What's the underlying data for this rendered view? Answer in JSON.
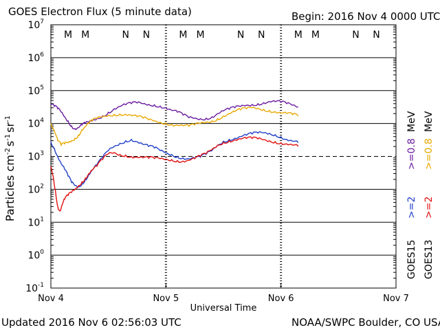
{
  "header": {
    "title": "GOES Electron Flux (5 minute data)",
    "begin": "Begin: 2016 Nov 4 0000 UTC"
  },
  "footer": {
    "updated": "Updated 2016 Nov  6 02:56:03 UTC",
    "credit": "NOAA/SWPC Boulder, CO USA"
  },
  "legend": {
    "goes15": "GOES15",
    "goes13": "GOES13",
    "g15_2": ">=2",
    "g13_2": ">=2",
    "g15_08": ">=0.8",
    "g13_08": ">=0.8",
    "unit": "MeV"
  },
  "colors": {
    "goes15_2": "#1f3fc8",
    "goes13_2": "#e01010",
    "goes15_08": "#6a1aa0",
    "goes13_08": "#e8a800",
    "marker_M": "#cc2222",
    "marker_N": "#2244cc"
  },
  "chart_data": {
    "type": "line",
    "title": "GOES Electron Flux (5 minute data)",
    "xlabel": "Universal Time",
    "ylabel": "Particles cm-2 s-1 sr-1",
    "ylabel_parts": {
      "base": "Particles cm",
      "e1": "-2",
      "mid1": "s",
      "e2": "-1",
      "mid2": "sr",
      "e3": "-1"
    },
    "yscale": "log",
    "ylim": [
      0.1,
      10000000
    ],
    "y_ticks": [
      {
        "base": "10",
        "exp": "7"
      },
      {
        "base": "10",
        "exp": "6"
      },
      {
        "base": "10",
        "exp": "5"
      },
      {
        "base": "10",
        "exp": "4"
      },
      {
        "base": "10",
        "exp": "3"
      },
      {
        "base": "10",
        "exp": "2"
      },
      {
        "base": "10",
        "exp": "1"
      },
      {
        "base": "10",
        "exp": "0"
      },
      {
        "base": "10",
        "exp": "-1"
      }
    ],
    "xlim_days": [
      0,
      3
    ],
    "x_ticks": [
      "Nov 4",
      "Nov 5",
      "Nov 6",
      "Nov 7"
    ],
    "threshold_line": 1000,
    "local_markers": [
      {
        "label": "M",
        "day": 0.15
      },
      {
        "label": "M",
        "day": 0.3
      },
      {
        "label": "N",
        "day": 0.65
      },
      {
        "label": "N",
        "day": 0.83
      },
      {
        "label": "M",
        "day": 1.15
      },
      {
        "label": "M",
        "day": 1.3
      },
      {
        "label": "N",
        "day": 1.65
      },
      {
        "label": "N",
        "day": 1.83
      },
      {
        "label": "M",
        "day": 2.15
      },
      {
        "label": "M",
        "day": 2.3
      },
      {
        "label": "N",
        "day": 2.65
      },
      {
        "label": "N",
        "day": 2.83
      }
    ],
    "series": [
      {
        "name": "GOES15 >=0.8 MeV",
        "x": [
          0.0,
          0.03,
          0.06,
          0.09,
          0.12,
          0.15,
          0.18,
          0.21,
          0.24,
          0.27,
          0.3,
          0.33,
          0.36,
          0.4,
          0.45,
          0.5,
          0.55,
          0.6,
          0.65,
          0.7,
          0.75,
          0.8,
          0.85,
          0.9,
          0.95,
          1.0,
          1.05,
          1.1,
          1.15,
          1.2,
          1.25,
          1.3,
          1.35,
          1.4,
          1.45,
          1.5,
          1.55,
          1.6,
          1.65,
          1.7,
          1.75,
          1.8,
          1.85,
          1.9,
          1.95,
          2.0,
          2.05,
          2.1,
          2.15
        ],
        "values": [
          38000,
          33000,
          28000,
          22000,
          16000,
          12000,
          8500,
          7000,
          7500,
          9000,
          10000,
          10500,
          12000,
          14000,
          17000,
          22000,
          28000,
          33000,
          37000,
          40000,
          42000,
          40000,
          38000,
          37000,
          34000,
          30000,
          25000,
          22000,
          18000,
          15000,
          14500,
          14000,
          14500,
          16000,
          20000,
          24000,
          27000,
          30000,
          33000,
          36000,
          38000,
          40000,
          43000,
          46000,
          46000,
          44000,
          40000,
          36000,
          32000
        ]
      },
      {
        "name": "GOES13 >=0.8 MeV",
        "x": [
          0.0,
          0.03,
          0.06,
          0.09,
          0.12,
          0.15,
          0.18,
          0.21,
          0.24,
          0.27,
          0.3,
          0.33,
          0.36,
          0.4,
          0.45,
          0.5,
          0.55,
          0.6,
          0.65,
          0.7,
          0.75,
          0.8,
          0.85,
          0.9,
          0.95,
          1.0,
          1.05,
          1.1,
          1.15,
          1.2,
          1.25,
          1.3,
          1.35,
          1.4,
          1.45,
          1.5,
          1.55,
          1.6,
          1.65,
          1.7,
          1.75,
          1.8,
          1.85,
          1.9,
          1.95,
          2.0,
          2.05,
          2.1,
          2.15
        ],
        "values": [
          10000,
          6000,
          3000,
          2200,
          2400,
          2600,
          3000,
          3600,
          4500,
          6500,
          8000,
          10000,
          12000,
          14000,
          16000,
          18000,
          19000,
          19500,
          19000,
          17500,
          16000,
          14500,
          13000,
          12000,
          11000,
          10500,
          9500,
          9000,
          8500,
          8200,
          9000,
          10000,
          11000,
          12000,
          14000,
          17000,
          20000,
          23000,
          26000,
          28000,
          30000,
          29000,
          27000,
          25000,
          23000,
          21000,
          20000,
          18500,
          17000
        ]
      },
      {
        "name": "GOES15 >=2 MeV",
        "x": [
          0.0,
          0.03,
          0.06,
          0.09,
          0.12,
          0.15,
          0.18,
          0.21,
          0.24,
          0.27,
          0.3,
          0.33,
          0.36,
          0.4,
          0.45,
          0.5,
          0.55,
          0.6,
          0.65,
          0.7,
          0.75,
          0.8,
          0.85,
          0.9,
          0.95,
          1.0,
          1.05,
          1.1,
          1.15,
          1.2,
          1.25,
          1.3,
          1.35,
          1.4,
          1.45,
          1.5,
          1.55,
          1.6,
          1.65,
          1.7,
          1.75,
          1.8,
          1.85,
          1.9,
          1.95,
          2.0,
          2.05,
          2.1,
          2.15
        ],
        "values": [
          2800,
          1800,
          1000,
          600,
          400,
          250,
          160,
          130,
          120,
          150,
          200,
          280,
          380,
          550,
          900,
          1500,
          2000,
          2500,
          3000,
          3300,
          2800,
          2300,
          2000,
          1800,
          1500,
          1300,
          1150,
          1000,
          900,
          850,
          880,
          950,
          1150,
          1500,
          2200,
          2900,
          3300,
          3600,
          4000,
          4400,
          4800,
          5100,
          5200,
          5000,
          4600,
          4000,
          3300,
          2900,
          2600
        ]
      },
      {
        "name": "GOES13 >=2 MeV",
        "x": [
          0.0,
          0.02,
          0.04,
          0.06,
          0.08,
          0.1,
          0.12,
          0.15,
          0.18,
          0.21,
          0.24,
          0.27,
          0.3,
          0.33,
          0.36,
          0.4,
          0.45,
          0.5,
          0.55,
          0.6,
          0.65,
          0.7,
          0.75,
          0.8,
          0.85,
          0.9,
          0.95,
          1.0,
          1.05,
          1.1,
          1.15,
          1.2,
          1.25,
          1.3,
          1.35,
          1.4,
          1.45,
          1.5,
          1.55,
          1.6,
          1.65,
          1.7,
          1.75,
          1.8,
          1.85,
          1.9,
          1.95,
          2.0,
          2.05,
          2.1,
          2.15
        ],
        "values": [
          500,
          250,
          90,
          30,
          22,
          35,
          50,
          65,
          80,
          100,
          130,
          170,
          220,
          300,
          380,
          500,
          800,
          1200,
          1300,
          1150,
          1100,
          1000,
          950,
          900,
          880,
          860,
          850,
          830,
          800,
          750,
          720,
          760,
          850,
          1000,
          1200,
          1600,
          2200,
          2700,
          3000,
          3200,
          3400,
          3500,
          3500,
          3400,
          3200,
          3000,
          2800,
          2600,
          2400,
          2200,
          2000
        ]
      }
    ]
  }
}
